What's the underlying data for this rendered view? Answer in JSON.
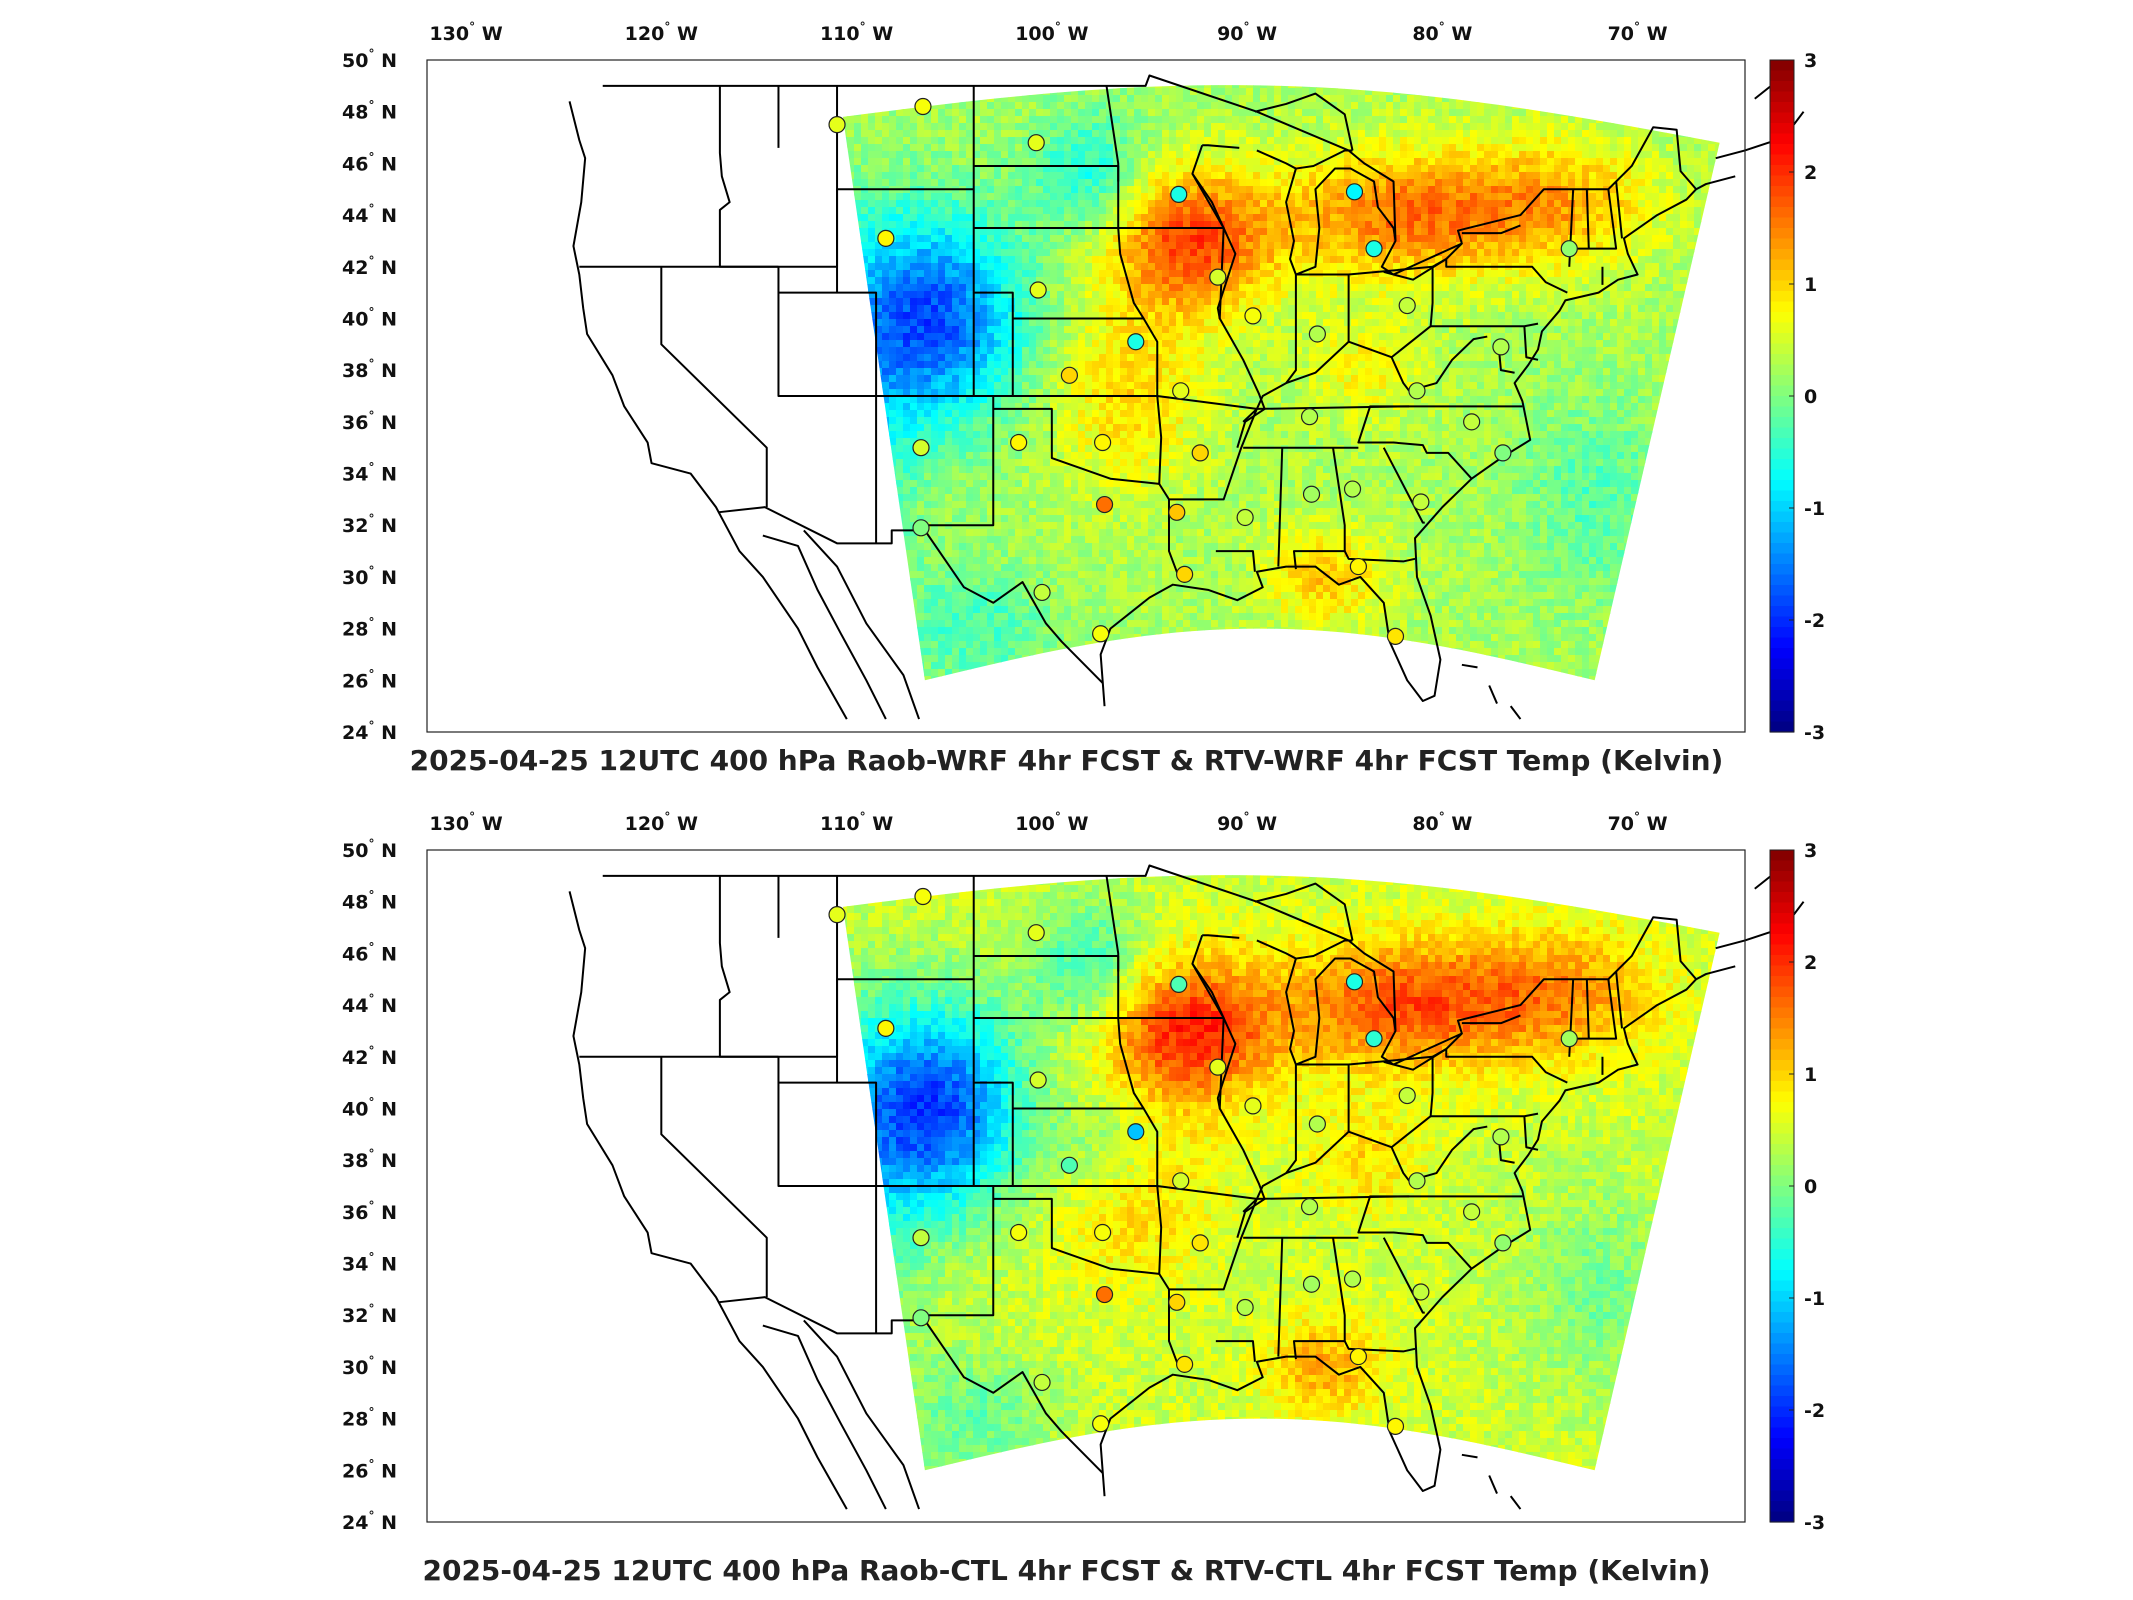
{
  "maps": [
    {
      "id": "top",
      "title": "2025-04-25 12UTC 400 hPa Raob-WRF 4hr FCST & RTV-WRF 4hr FCST Temp (Kelvin)",
      "stations": [
        {
          "lon": -111.0,
          "lat": 47.5,
          "v": 0.6
        },
        {
          "lon": -106.6,
          "lat": 48.2,
          "v": 0.7
        },
        {
          "lon": -100.8,
          "lat": 46.8,
          "v": 0.6
        },
        {
          "lon": -108.5,
          "lat": 43.1,
          "v": 0.8
        },
        {
          "lon": -93.5,
          "lat": 44.8,
          "v": -0.6
        },
        {
          "lon": -84.5,
          "lat": 44.9,
          "v": -0.8
        },
        {
          "lon": -83.5,
          "lat": 42.7,
          "v": -0.6
        },
        {
          "lon": -73.5,
          "lat": 42.7,
          "v": 0.1
        },
        {
          "lon": -100.7,
          "lat": 41.1,
          "v": 0.6
        },
        {
          "lon": -91.5,
          "lat": 41.6,
          "v": 0.5
        },
        {
          "lon": -89.7,
          "lat": 40.1,
          "v": 0.7
        },
        {
          "lon": -86.4,
          "lat": 39.4,
          "v": 0.3
        },
        {
          "lon": -81.8,
          "lat": 40.5,
          "v": 0.4
        },
        {
          "lon": -77.0,
          "lat": 38.9,
          "v": 0.3
        },
        {
          "lon": -95.7,
          "lat": 39.1,
          "v": -0.6
        },
        {
          "lon": -99.1,
          "lat": 37.8,
          "v": 1.0
        },
        {
          "lon": -93.4,
          "lat": 37.2,
          "v": 0.6
        },
        {
          "lon": -86.8,
          "lat": 36.2,
          "v": 0.3
        },
        {
          "lon": -81.3,
          "lat": 37.2,
          "v": 0.3
        },
        {
          "lon": -78.5,
          "lat": 36.0,
          "v": 0.4
        },
        {
          "lon": -106.7,
          "lat": 35.0,
          "v": 0.5
        },
        {
          "lon": -101.7,
          "lat": 35.2,
          "v": 0.8
        },
        {
          "lon": -97.4,
          "lat": 35.2,
          "v": 0.8
        },
        {
          "lon": -92.4,
          "lat": 34.8,
          "v": 1.0
        },
        {
          "lon": -76.9,
          "lat": 34.8,
          "v": 0.0
        },
        {
          "lon": -97.3,
          "lat": 32.8,
          "v": 1.6
        },
        {
          "lon": -93.6,
          "lat": 32.5,
          "v": 1.1
        },
        {
          "lon": -90.1,
          "lat": 32.3,
          "v": 0.4
        },
        {
          "lon": -86.7,
          "lat": 33.2,
          "v": 0.2
        },
        {
          "lon": -84.6,
          "lat": 33.4,
          "v": 0.3
        },
        {
          "lon": -81.1,
          "lat": 32.9,
          "v": 0.4
        },
        {
          "lon": -106.7,
          "lat": 31.9,
          "v": 0.0
        },
        {
          "lon": -100.5,
          "lat": 29.4,
          "v": 0.4
        },
        {
          "lon": -93.2,
          "lat": 30.1,
          "v": 1.0
        },
        {
          "lon": -84.3,
          "lat": 30.4,
          "v": 0.8
        },
        {
          "lon": -97.5,
          "lat": 27.8,
          "v": 0.7
        },
        {
          "lon": -82.4,
          "lat": 27.7,
          "v": 0.9
        }
      ]
    },
    {
      "id": "bottom",
      "title": "2025-04-25 12UTC 400 hPa Raob-CTL 4hr FCST & RTV-CTL 4hr FCST Temp (Kelvin)",
      "stations": [
        {
          "lon": -111.0,
          "lat": 47.5,
          "v": 0.6
        },
        {
          "lon": -106.6,
          "lat": 48.2,
          "v": 0.7
        },
        {
          "lon": -100.8,
          "lat": 46.8,
          "v": 0.6
        },
        {
          "lon": -108.5,
          "lat": 43.1,
          "v": 0.8
        },
        {
          "lon": -93.5,
          "lat": 44.8,
          "v": -0.3
        },
        {
          "lon": -84.5,
          "lat": 44.9,
          "v": -0.6
        },
        {
          "lon": -83.5,
          "lat": 42.7,
          "v": -0.5
        },
        {
          "lon": -73.5,
          "lat": 42.7,
          "v": 0.2
        },
        {
          "lon": -100.7,
          "lat": 41.1,
          "v": 0.5
        },
        {
          "lon": -91.5,
          "lat": 41.6,
          "v": 0.6
        },
        {
          "lon": -89.7,
          "lat": 40.1,
          "v": 0.6
        },
        {
          "lon": -86.4,
          "lat": 39.4,
          "v": 0.3
        },
        {
          "lon": -81.8,
          "lat": 40.5,
          "v": 0.4
        },
        {
          "lon": -77.0,
          "lat": 38.9,
          "v": 0.3
        },
        {
          "lon": -95.7,
          "lat": 39.1,
          "v": -1.1
        },
        {
          "lon": -99.1,
          "lat": 37.8,
          "v": -0.3
        },
        {
          "lon": -93.4,
          "lat": 37.2,
          "v": 0.5
        },
        {
          "lon": -86.8,
          "lat": 36.2,
          "v": 0.3
        },
        {
          "lon": -81.3,
          "lat": 37.2,
          "v": 0.3
        },
        {
          "lon": -78.5,
          "lat": 36.0,
          "v": 0.4
        },
        {
          "lon": -106.7,
          "lat": 35.0,
          "v": 0.4
        },
        {
          "lon": -101.7,
          "lat": 35.2,
          "v": 0.7
        },
        {
          "lon": -97.4,
          "lat": 35.2,
          "v": 0.7
        },
        {
          "lon": -92.4,
          "lat": 34.8,
          "v": 0.9
        },
        {
          "lon": -76.9,
          "lat": 34.8,
          "v": 0.1
        },
        {
          "lon": -97.3,
          "lat": 32.8,
          "v": 1.6
        },
        {
          "lon": -93.6,
          "lat": 32.5,
          "v": 1.0
        },
        {
          "lon": -90.1,
          "lat": 32.3,
          "v": 0.3
        },
        {
          "lon": -86.7,
          "lat": 33.2,
          "v": 0.2
        },
        {
          "lon": -84.6,
          "lat": 33.4,
          "v": 0.3
        },
        {
          "lon": -81.1,
          "lat": 32.9,
          "v": 0.4
        },
        {
          "lon": -106.7,
          "lat": 31.9,
          "v": 0.0
        },
        {
          "lon": -100.5,
          "lat": 29.4,
          "v": 0.4
        },
        {
          "lon": -93.2,
          "lat": 30.1,
          "v": 0.9
        },
        {
          "lon": -84.3,
          "lat": 30.4,
          "v": 0.8
        },
        {
          "lon": -97.5,
          "lat": 27.8,
          "v": 0.7
        },
        {
          "lon": -82.4,
          "lat": 27.7,
          "v": 0.8
        }
      ]
    }
  ],
  "lat_ticks": [
    "24",
    "26",
    "28",
    "30",
    "32",
    "34",
    "36",
    "38",
    "40",
    "42",
    "44",
    "46",
    "48",
    "50"
  ],
  "lat_hemisphere": "N",
  "lon_ticks": [
    "130",
    "120",
    "110",
    "100",
    "90",
    "80",
    "70"
  ],
  "lon_hemisphere": "W",
  "colorbar": {
    "min": -3,
    "max": 3,
    "ticks": [
      "3",
      "2",
      "1",
      "0",
      "-1",
      "-2",
      "-3"
    ],
    "colormap": "jet"
  },
  "colors": {
    "coastline": "#000000",
    "background": "#ffffff"
  }
}
